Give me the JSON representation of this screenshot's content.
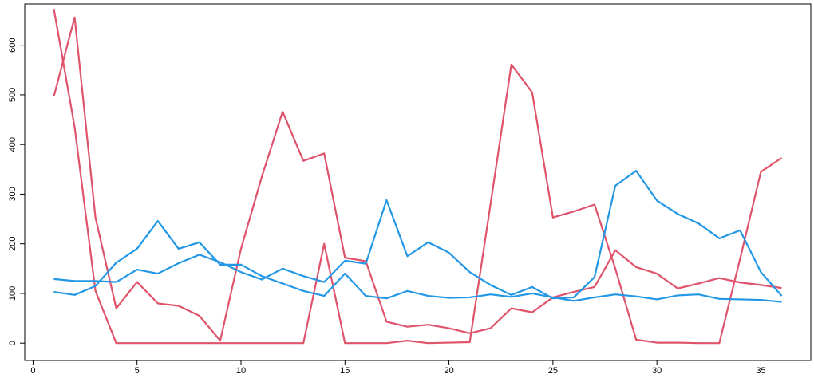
{
  "chart_data": {
    "type": "line",
    "x": [
      1,
      2,
      3,
      4,
      5,
      6,
      7,
      8,
      9,
      10,
      11,
      12,
      13,
      14,
      15,
      16,
      17,
      18,
      19,
      20,
      21,
      22,
      23,
      24,
      25,
      26,
      27,
      28,
      29,
      30,
      31,
      32,
      33,
      34,
      35,
      36
    ],
    "series": [
      {
        "color": "#DF536B",
        "values": [
          673,
          435,
          105,
          0,
          0,
          0,
          0,
          0,
          0,
          0,
          0,
          0,
          0,
          200,
          0,
          0,
          0,
          5,
          0,
          1,
          2,
          280,
          561,
          505,
          253,
          265,
          279,
          150,
          7,
          1,
          1,
          0,
          0,
          170,
          345,
          373
        ]
      },
      {
        "color": "#DF536B",
        "values": [
          497,
          656,
          253,
          70,
          123,
          80,
          75,
          55,
          5,
          190,
          335,
          466,
          367,
          382,
          172,
          165,
          43,
          33,
          37,
          30,
          20,
          30,
          70,
          62,
          92,
          103,
          113,
          187,
          153,
          140,
          110,
          120,
          131,
          122,
          117,
          111
        ]
      },
      {
        "color": "#2297E6",
        "values": [
          129,
          125,
          125,
          123,
          148,
          140,
          161,
          178,
          163,
          143,
          128,
          150,
          135,
          123,
          166,
          160,
          288,
          175,
          203,
          182,
          143,
          117,
          97,
          113,
          90,
          92,
          133,
          317,
          347,
          287,
          260,
          241,
          211,
          227,
          143,
          95
        ]
      },
      {
        "color": "#2297E6",
        "values": [
          103,
          97,
          115,
          162,
          190,
          246,
          190,
          203,
          158,
          158,
          135,
          120,
          105,
          95,
          140,
          95,
          90,
          105,
          95,
          91,
          92,
          98,
          93,
          100,
          92,
          85,
          92,
          98,
          94,
          88,
          96,
          98,
          89,
          88,
          87,
          83
        ]
      }
    ],
    "xlim": [
      -0.4,
      37.4
    ],
    "xticks": [
      0,
      5,
      10,
      15,
      20,
      25,
      30,
      35
    ],
    "ylim": [
      -35,
      683
    ],
    "yticks": [
      0,
      100,
      200,
      300,
      400,
      500,
      600
    ]
  }
}
